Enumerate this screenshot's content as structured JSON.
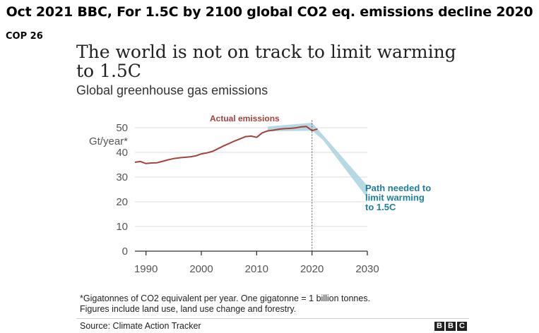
{
  "header": {
    "headline": "Oct 2021 BBC, For 1.5C by 2100 global CO2 eq. emissions decline 2020",
    "event_tag": "COP 26"
  },
  "footer": {
    "footnote_line1": "*Gigatonnes of CO2 equivalent per year. One gigatonne = 1 billion tonnes.",
    "footnote_line2": "Figures include land use, land use change and forestry.",
    "source": "Source: Climate Action Tracker",
    "logo_letters": [
      "B",
      "B",
      "C"
    ]
  },
  "colors": {
    "actual": "#a2423d",
    "path_band": "#a9d2df",
    "path_text": "#1d7f9c",
    "gridline": "#dcdcdc"
  },
  "chart_data": {
    "type": "line",
    "title": "The world is not on track to limit warming to 1.5C",
    "title_lines": [
      "The world is not on track to limit warming",
      "to 1.5C"
    ],
    "subtitle": "Global greenhouse gas emissions",
    "ylabel": "Gt/year*",
    "xlim": [
      1988,
      2030
    ],
    "ylim": [
      0,
      50
    ],
    "yticks": [
      0,
      10,
      20,
      30,
      40,
      50
    ],
    "xticks": [
      1990,
      2000,
      2010,
      2020,
      2030
    ],
    "grid": true,
    "series": [
      {
        "name": "Actual emissions",
        "kind": "line",
        "color": "#a2423d",
        "x": [
          1988,
          1989,
          1990,
          1991,
          1992,
          1993,
          1994,
          1995,
          1996,
          1997,
          1998,
          1999,
          2000,
          2001,
          2002,
          2003,
          2004,
          2005,
          2006,
          2007,
          2008,
          2009,
          2010,
          2011,
          2012,
          2013,
          2014,
          2015,
          2016,
          2017,
          2018,
          2019,
          2020,
          2021
        ],
        "y": [
          36.0,
          36.3,
          35.5,
          35.7,
          35.8,
          36.4,
          37.0,
          37.5,
          37.8,
          38.0,
          38.2,
          38.6,
          39.4,
          39.8,
          40.4,
          41.5,
          42.6,
          43.6,
          44.6,
          45.5,
          46.4,
          46.6,
          46.1,
          47.9,
          48.7,
          49.0,
          49.4,
          49.6,
          49.7,
          49.9,
          50.3,
          50.5,
          48.8,
          49.5
        ]
      },
      {
        "name": "Path needed to limit warming to 1.5C",
        "kind": "band",
        "color": "#a9d2df",
        "x": [
          2012,
          2020,
          2022,
          2030
        ],
        "y_low": [
          48.5,
          48.8,
          45.0,
          21.5
        ],
        "y_high": [
          50.5,
          52.0,
          47.0,
          26.5
        ]
      }
    ],
    "annotations": [
      {
        "text": "Actual emissions",
        "series": "Actual emissions"
      },
      {
        "lines": [
          "Path needed to",
          "limit warming",
          "to 1.5C"
        ],
        "series": "Path needed to limit warming to 1.5C"
      }
    ]
  }
}
